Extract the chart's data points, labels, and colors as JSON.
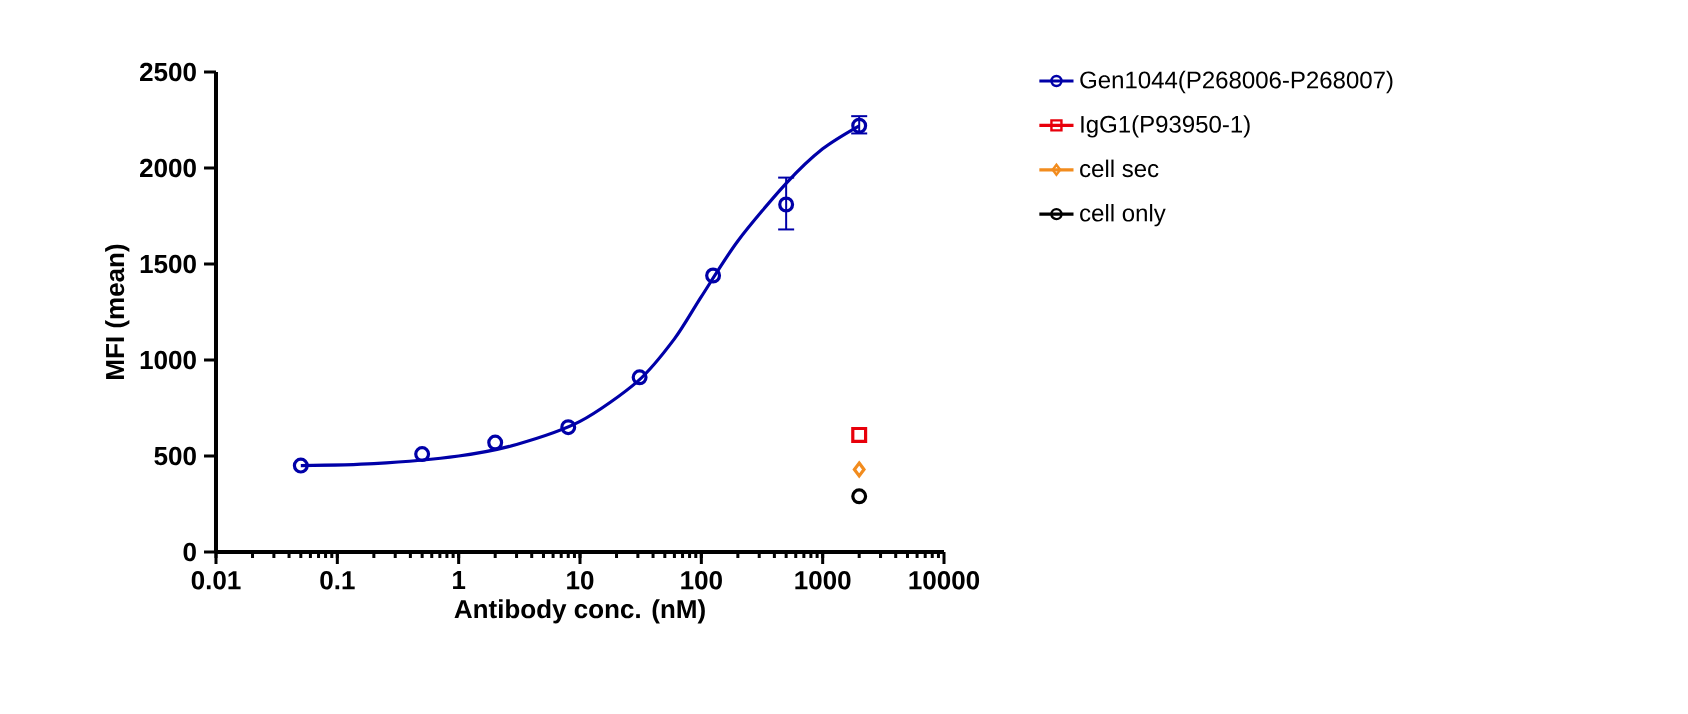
{
  "chart_data": {
    "type": "scatter",
    "xlabel": "Antibody conc. (nM)",
    "ylabel": "MFI (mean)",
    "log": "x",
    "xlim": [
      0.01,
      10000
    ],
    "xticks": [
      0.01,
      0.1,
      1,
      10,
      100,
      1000,
      10000
    ],
    "ylim": [
      0,
      2500
    ],
    "yticks": [
      0,
      500,
      1000,
      1500,
      2000,
      2500
    ],
    "grid": false,
    "legend": "right",
    "series": [
      {
        "name": "Gen1044(P268006-P268007)",
        "marker": "circle",
        "color": "#0000a8",
        "x": [
          0.05,
          0.5,
          2,
          8,
          31,
          125,
          500,
          2000
        ],
        "values": [
          450,
          510,
          570,
          650,
          910,
          1440,
          1810,
          2220
        ],
        "errors": [
          null,
          null,
          null,
          null,
          null,
          null,
          [
            1680,
            1950
          ],
          [
            2180,
            2270
          ]
        ]
      },
      {
        "type": "line",
        "marker": "none",
        "color": "#0000a8",
        "x": [
          0.05,
          0.2,
          1,
          3,
          10,
          30,
          60,
          100,
          200,
          500,
          1000,
          2000
        ],
        "values": [
          450,
          460,
          500,
          560,
          680,
          890,
          1110,
          1330,
          1620,
          1920,
          2100,
          2220
        ]
      },
      {
        "name": "IgG1(P93950-1)",
        "marker": "square",
        "color": "#e8000b",
        "x": [
          2000
        ],
        "values": [
          610
        ]
      },
      {
        "name": "cell sec",
        "marker": "diamond",
        "color": "#f28c1e",
        "x": [
          2000
        ],
        "values": [
          430
        ]
      },
      {
        "name": "cell only",
        "marker": "circle",
        "color": "#000000",
        "x": [
          2000
        ],
        "values": [
          290
        ]
      }
    ]
  }
}
